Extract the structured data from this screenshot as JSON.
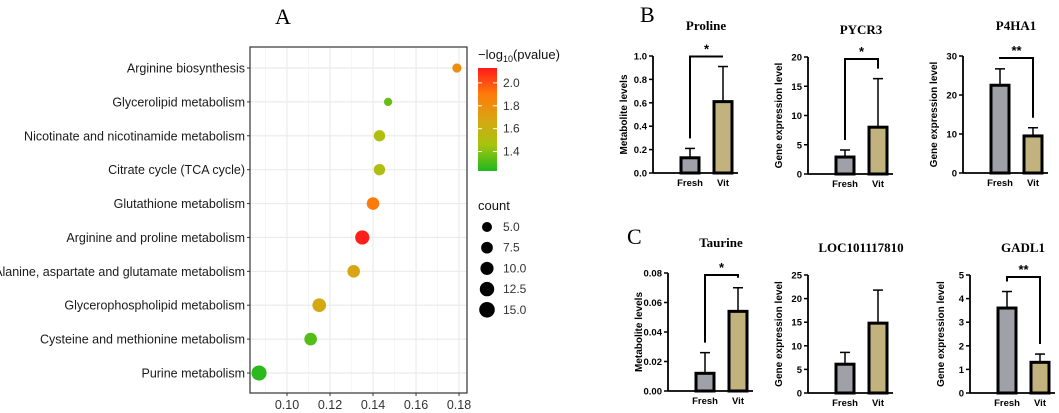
{
  "panel_labels": {
    "a": "A",
    "b": "B",
    "c": "C"
  },
  "chart_data": [
    {
      "id": "A",
      "type": "scatter",
      "title": "",
      "xlabel": "",
      "ylabel": "",
      "xlim": [
        0.0828,
        0.1837
      ],
      "xticks": [
        "0.10",
        "0.12",
        "0.14",
        "0.16",
        "0.18"
      ],
      "xtick_values": [
        0.1,
        0.12,
        0.14,
        0.16,
        0.18
      ],
      "grid": true,
      "categories": [
        "Arginine biosynthesis",
        "Glycerolipid metabolism",
        "Nicotinate and nicotinamide metabolism",
        "Citrate cycle (TCA cycle)",
        "Glutathione metabolism",
        "Arginine and proline metabolism",
        "Alanine, aspartate and glutamate metabolism",
        "Glycerophospholipid metabolism",
        "Cysteine and methionine metabolism",
        "Purine metabolism"
      ],
      "x": [
        0.179,
        0.147,
        0.143,
        0.143,
        0.14,
        0.135,
        0.131,
        0.115,
        0.111,
        0.087
      ],
      "neg_log10_pvalue": [
        1.8,
        1.35,
        1.5,
        1.5,
        1.9,
        2.12,
        1.68,
        1.65,
        1.32,
        1.25
      ],
      "count": [
        4,
        3,
        7,
        7,
        9,
        12,
        9,
        11,
        9,
        14
      ],
      "color_legend": {
        "title_prefix": "−log",
        "title_sub": "10",
        "title_suffix": "(pvalue)",
        "range": [
          1.23,
          2.13
        ],
        "ticks": [
          "2.0",
          "1.8",
          "1.6",
          "1.4"
        ],
        "tick_values": [
          2.0,
          1.8,
          1.6,
          1.4
        ],
        "colors": [
          "#1fb81f",
          "#a6c40e",
          "#d9a514",
          "#ff7a0a",
          "#ff1a1a"
        ]
      },
      "size_legend": {
        "title": "count",
        "labels": [
          "5.0",
          "7.5",
          "10.0",
          "12.5",
          "15.0"
        ],
        "values": [
          5,
          7.5,
          10,
          12.5,
          15
        ]
      },
      "legend_placement": "right"
    },
    {
      "id": "B1",
      "type": "bar",
      "title": "Proline",
      "ylabel": "Metabolite levels",
      "categories": [
        "Fresh",
        "Vit"
      ],
      "values": [
        0.13,
        0.61
      ],
      "errors": [
        0.08,
        0.3
      ],
      "ylim": [
        0,
        1.0
      ],
      "yticks": [
        "0.0",
        "0.2",
        "0.4",
        "0.6",
        "0.8",
        "1.0"
      ],
      "ytick_values": [
        0,
        0.2,
        0.4,
        0.6,
        0.8,
        1.0
      ],
      "significance": "*",
      "colors": [
        "#a0a0a8",
        "#c2b27d"
      ]
    },
    {
      "id": "B2",
      "type": "bar",
      "title": "PYCR3",
      "ylabel": "Gene expression level",
      "categories": [
        "Fresh",
        "Vit"
      ],
      "values": [
        2.9,
        8.0
      ],
      "errors": [
        1.2,
        8.3
      ],
      "ylim": [
        0,
        20
      ],
      "yticks": [
        "0",
        "5",
        "10",
        "15",
        "20"
      ],
      "ytick_values": [
        0,
        5,
        10,
        15,
        20
      ],
      "significance": "*",
      "colors": [
        "#a0a0a8",
        "#c2b27d"
      ]
    },
    {
      "id": "B3",
      "type": "bar",
      "title": "P4HA1",
      "ylabel": "Gene expression level",
      "categories": [
        "Fresh",
        "Vit"
      ],
      "values": [
        22.5,
        9.5
      ],
      "errors": [
        4.2,
        2.1
      ],
      "ylim": [
        0,
        30
      ],
      "yticks": [
        "0",
        "10",
        "20",
        "30"
      ],
      "ytick_values": [
        0,
        10,
        20,
        30
      ],
      "significance": "**",
      "colors": [
        "#a0a0a8",
        "#c2b27d"
      ]
    },
    {
      "id": "C1",
      "type": "bar",
      "title": "Taurine",
      "ylabel": "Metabolite levels",
      "categories": [
        "Fresh",
        "Vit"
      ],
      "values": [
        0.012,
        0.054
      ],
      "errors": [
        0.014,
        0.016
      ],
      "ylim": [
        0,
        0.08
      ],
      "yticks": [
        "0.00",
        "0.02",
        "0.04",
        "0.06",
        "0.08"
      ],
      "ytick_values": [
        0,
        0.02,
        0.04,
        0.06,
        0.08
      ],
      "significance": "*",
      "colors": [
        "#a0a0a8",
        "#c2b27d"
      ]
    },
    {
      "id": "C2",
      "type": "bar",
      "title": "LOC101117810",
      "ylabel": "Gene expression level",
      "categories": [
        "Fresh",
        "Vit"
      ],
      "values": [
        6.1,
        14.8
      ],
      "errors": [
        2.5,
        7.0
      ],
      "ylim": [
        0,
        25
      ],
      "yticks": [
        "0",
        "5",
        "10",
        "15",
        "20",
        "25"
      ],
      "ytick_values": [
        0,
        5,
        10,
        15,
        20,
        25
      ],
      "significance": "",
      "colors": [
        "#a0a0a8",
        "#c2b27d"
      ]
    },
    {
      "id": "C3",
      "type": "bar",
      "title": "GADL1",
      "ylabel": "Gene expression level",
      "categories": [
        "Fresh",
        "Vit"
      ],
      "values": [
        3.6,
        1.3
      ],
      "errors": [
        0.7,
        0.35
      ],
      "ylim": [
        0,
        5
      ],
      "yticks": [
        "0",
        "1",
        "2",
        "3",
        "4",
        "5"
      ],
      "ytick_values": [
        0,
        1,
        2,
        3,
        4,
        5
      ],
      "significance": "**",
      "colors": [
        "#a0a0a8",
        "#c2b27d"
      ]
    }
  ]
}
